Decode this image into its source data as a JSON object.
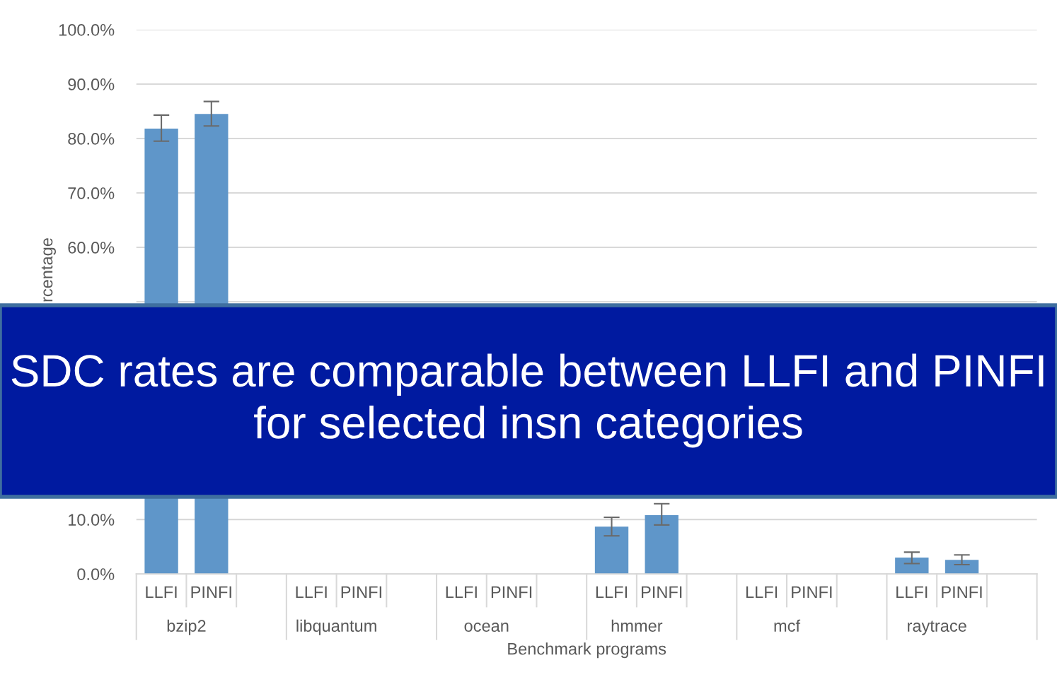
{
  "chart_data": {
    "type": "bar",
    "xlabel": "Benchmark programs",
    "ylabel": "rcentage",
    "categories": [
      "LLFI",
      "PINFI",
      "LLFI",
      "PINFI",
      "LLFI",
      "PINFI",
      "LLFI",
      "PINFI",
      "LLFI",
      "PINFI",
      "LLFI",
      "PINFI"
    ],
    "values": [
      81.8,
      84.5,
      null,
      null,
      null,
      null,
      8.7,
      10.8,
      null,
      null,
      3.0,
      2.6
    ],
    "errors": [
      [
        79.5,
        84.3
      ],
      [
        82.3,
        86.8
      ],
      null,
      null,
      null,
      null,
      [
        7.0,
        10.4
      ],
      [
        9.0,
        12.9
      ],
      null,
      null,
      [
        1.9,
        4.0
      ],
      [
        1.7,
        3.5
      ]
    ],
    "color": "#5f96c9",
    "ylim": [
      0,
      100
    ],
    "yticks": [
      {
        "value": 0,
        "label": "0.0%"
      },
      {
        "value": 10,
        "label": "10.0%"
      },
      {
        "value": 50,
        "label": null
      },
      {
        "value": 60,
        "label": "60.0%"
      },
      {
        "value": 70,
        "label": "70.0%"
      },
      {
        "value": 80,
        "label": "80.0%"
      },
      {
        "value": 90,
        "label": "90.0%"
      },
      {
        "value": 100,
        "label": "100.0%"
      }
    ],
    "grid": "y",
    "annotations": [
      "SDC rates are comparable between LLFI and PINFI for selected insn categories",
      "bzip2",
      "libquantum",
      "ocean",
      "hmmer",
      "mcf",
      "raytrace"
    ]
  }
}
